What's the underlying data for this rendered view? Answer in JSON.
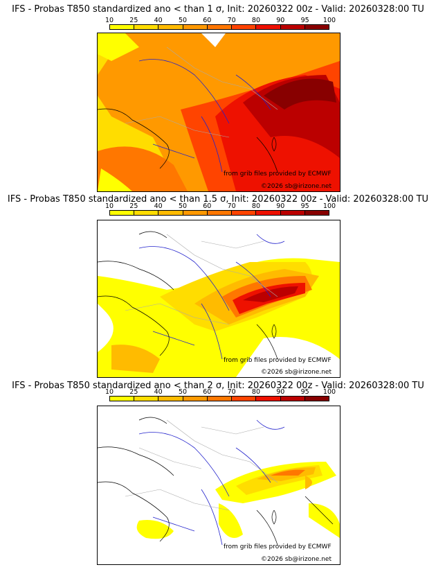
{
  "colorbar": {
    "ticks": [
      "10",
      "25",
      "40",
      "50",
      "60",
      "70",
      "80",
      "90",
      "95",
      "100"
    ],
    "colors": [
      "#ffff00",
      "#ffdd00",
      "#ffbb00",
      "#ff9900",
      "#ff7700",
      "#ff4400",
      "#ee1100",
      "#bb0000",
      "#880000"
    ]
  },
  "panels": [
    {
      "title": "IFS - Probas T850  standardized ano < than 1 σ, Init: 20260322 00z - Valid: 20260328:00 TU",
      "threshold_sigma": 1,
      "credit": "from grib files provided by ECMWF",
      "copyright": "©2026 sb@irizone.net"
    },
    {
      "title": "IFS - Probas T850  standardized ano < than 1.5 σ, Init: 20260322 00z - Valid: 20260328:00 TU",
      "threshold_sigma": 1.5,
      "credit": "from grib files provided by ECMWF",
      "copyright": "©2026 sb@irizone.net"
    },
    {
      "title": "IFS - Probas T850  standardized ano < than 2 σ, Init: 20260322 00z - Valid: 20260328:00 TU",
      "threshold_sigma": 2,
      "credit": "from grib files provided by ECMWF",
      "copyright": "©2026 sb@irizone.net"
    }
  ]
}
